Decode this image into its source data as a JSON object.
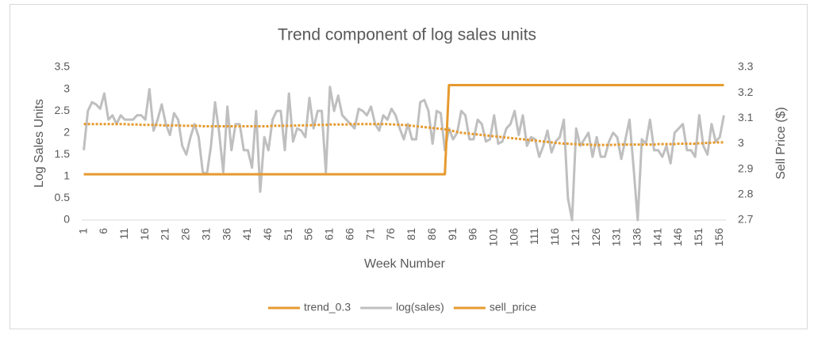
{
  "chart_data": {
    "type": "line",
    "title": "Trend component of log sales units",
    "x_label": "Week Number",
    "y_label": "Log Sales Units",
    "y2_label": "Sell Price ($)",
    "x": [
      1,
      2,
      3,
      4,
      5,
      6,
      7,
      8,
      9,
      10,
      11,
      12,
      13,
      14,
      15,
      16,
      17,
      18,
      19,
      20,
      21,
      22,
      23,
      24,
      25,
      26,
      27,
      28,
      29,
      30,
      31,
      32,
      33,
      34,
      35,
      36,
      37,
      38,
      39,
      40,
      41,
      42,
      43,
      44,
      45,
      46,
      47,
      48,
      49,
      50,
      51,
      52,
      53,
      54,
      55,
      56,
      57,
      58,
      59,
      60,
      61,
      62,
      63,
      64,
      65,
      66,
      67,
      68,
      69,
      70,
      71,
      72,
      73,
      74,
      75,
      76,
      77,
      78,
      79,
      80,
      81,
      82,
      83,
      84,
      85,
      86,
      87,
      88,
      89,
      90,
      91,
      92,
      93,
      94,
      95,
      96,
      97,
      98,
      99,
      100,
      101,
      102,
      103,
      104,
      105,
      106,
      107,
      108,
      109,
      110,
      111,
      112,
      113,
      114,
      115,
      116,
      117,
      118,
      119,
      120,
      121,
      122,
      123,
      124,
      125,
      126,
      127,
      128,
      129,
      130,
      131,
      132,
      133,
      134,
      135,
      136,
      137,
      138,
      139,
      140,
      141,
      142,
      143,
      144,
      145,
      146,
      147,
      148,
      149,
      150,
      151,
      152,
      153,
      154,
      155,
      156,
      157
    ],
    "xlim": [
      0.5,
      157.5
    ],
    "xticks": [
      1,
      6,
      11,
      16,
      21,
      26,
      31,
      36,
      41,
      46,
      51,
      56,
      61,
      66,
      71,
      76,
      81,
      86,
      91,
      96,
      101,
      106,
      111,
      116,
      121,
      126,
      131,
      136,
      141,
      146,
      151,
      156
    ],
    "ylim": [
      0,
      3.5
    ],
    "yticks": [
      0,
      0.5,
      1,
      1.5,
      2,
      2.5,
      3,
      3.5
    ],
    "y2lim": [
      2.7,
      3.3
    ],
    "y2ticks": [
      2.7,
      2.8,
      2.9,
      3,
      3.1,
      3.2,
      3.3
    ],
    "legend": "bottom",
    "series": [
      {
        "name": "trend_0.3",
        "color": "#e69a2e",
        "line_style": "dotted",
        "values": [
          2.2,
          2.2,
          2.2,
          2.2,
          2.2,
          2.2,
          2.2,
          2.2,
          2.2,
          2.2,
          2.2,
          2.19,
          2.19,
          2.19,
          2.18,
          2.18,
          2.18,
          2.18,
          2.18,
          2.17,
          2.17,
          2.17,
          2.17,
          2.17,
          2.16,
          2.16,
          2.16,
          2.16,
          2.16,
          2.15,
          2.15,
          2.15,
          2.15,
          2.15,
          2.15,
          2.15,
          2.15,
          2.15,
          2.15,
          2.15,
          2.15,
          2.15,
          2.15,
          2.15,
          2.15,
          2.15,
          2.16,
          2.16,
          2.16,
          2.16,
          2.16,
          2.16,
          2.17,
          2.17,
          2.17,
          2.17,
          2.18,
          2.18,
          2.18,
          2.18,
          2.19,
          2.19,
          2.19,
          2.19,
          2.19,
          2.2,
          2.2,
          2.2,
          2.2,
          2.2,
          2.2,
          2.2,
          2.2,
          2.2,
          2.2,
          2.19,
          2.19,
          2.18,
          2.18,
          2.17,
          2.16,
          2.15,
          2.14,
          2.13,
          2.12,
          2.11,
          2.1,
          2.09,
          2.08,
          2.06,
          2.04,
          2.02,
          2.0,
          1.99,
          1.98,
          1.97,
          1.96,
          1.95,
          1.94,
          1.93,
          1.92,
          1.91,
          1.9,
          1.89,
          1.88,
          1.87,
          1.86,
          1.85,
          1.84,
          1.83,
          1.82,
          1.81,
          1.8,
          1.79,
          1.78,
          1.77,
          1.76,
          1.75,
          1.75,
          1.74,
          1.74,
          1.73,
          1.73,
          1.73,
          1.72,
          1.72,
          1.72,
          1.72,
          1.72,
          1.72,
          1.73,
          1.73,
          1.73,
          1.73,
          1.73,
          1.73,
          1.73,
          1.73,
          1.73,
          1.73,
          1.74,
          1.74,
          1.74,
          1.74,
          1.74,
          1.75,
          1.75,
          1.75,
          1.75,
          1.75,
          1.76,
          1.76,
          1.77,
          1.77,
          1.78,
          1.78,
          1.78
        ]
      },
      {
        "name": "log(sales)",
        "color": "#bfbfbf",
        "line_style": "solid",
        "values": [
          1.6,
          2.5,
          2.7,
          2.65,
          2.55,
          2.9,
          2.3,
          2.4,
          2.2,
          2.4,
          2.3,
          2.3,
          2.3,
          2.4,
          2.4,
          2.3,
          3.0,
          2.05,
          2.3,
          2.65,
          2.2,
          1.95,
          2.45,
          2.3,
          1.7,
          1.5,
          1.9,
          2.2,
          1.9,
          1.1,
          1.05,
          1.7,
          2.7,
          2.0,
          1.1,
          2.6,
          1.6,
          2.2,
          2.2,
          1.6,
          1.6,
          1.2,
          2.5,
          0.65,
          1.9,
          1.6,
          2.3,
          2.5,
          2.5,
          1.6,
          2.9,
          1.8,
          2.1,
          2.05,
          1.9,
          2.8,
          2.1,
          2.5,
          2.5,
          1.1,
          3.05,
          2.5,
          2.85,
          2.4,
          2.3,
          2.2,
          2.1,
          2.55,
          2.5,
          2.4,
          2.6,
          2.2,
          2.05,
          2.4,
          2.3,
          2.55,
          2.4,
          2.1,
          1.85,
          2.2,
          1.85,
          1.85,
          2.7,
          2.75,
          2.5,
          1.75,
          2.5,
          2.45,
          1.6,
          2.1,
          1.85,
          2.0,
          2.5,
          2.4,
          1.85,
          1.85,
          2.3,
          2.2,
          1.8,
          1.85,
          2.4,
          1.75,
          1.8,
          2.1,
          2.2,
          2.5,
          1.95,
          2.4,
          1.7,
          1.9,
          1.85,
          1.45,
          1.7,
          2.05,
          1.55,
          1.8,
          1.9,
          2.3,
          0.5,
          0,
          2.1,
          1.7,
          1.85,
          2.0,
          1.45,
          1.9,
          1.45,
          1.45,
          1.8,
          2.0,
          1.9,
          1.4,
          1.85,
          2.3,
          1.2,
          0,
          1.85,
          1.75,
          2.3,
          1.6,
          1.6,
          1.45,
          1.7,
          1.3,
          2.0,
          2.1,
          2.2,
          1.6,
          1.6,
          1.45,
          2.4,
          1.7,
          1.5,
          2.2,
          1.8,
          1.9,
          2.4
        ]
      },
      {
        "name": "sell_price",
        "color": "#e69a2e",
        "line_style": "solid",
        "axis": "y2",
        "values": [
          2.88,
          2.88,
          2.88,
          2.88,
          2.88,
          2.88,
          2.88,
          2.88,
          2.88,
          2.88,
          2.88,
          2.88,
          2.88,
          2.88,
          2.88,
          2.88,
          2.88,
          2.88,
          2.88,
          2.88,
          2.88,
          2.88,
          2.88,
          2.88,
          2.88,
          2.88,
          2.88,
          2.88,
          2.88,
          2.88,
          2.88,
          2.88,
          2.88,
          2.88,
          2.88,
          2.88,
          2.88,
          2.88,
          2.88,
          2.88,
          2.88,
          2.88,
          2.88,
          2.88,
          2.88,
          2.88,
          2.88,
          2.88,
          2.88,
          2.88,
          2.88,
          2.88,
          2.88,
          2.88,
          2.88,
          2.88,
          2.88,
          2.88,
          2.88,
          2.88,
          2.88,
          2.88,
          2.88,
          2.88,
          2.88,
          2.88,
          2.88,
          2.88,
          2.88,
          2.88,
          2.88,
          2.88,
          2.88,
          2.88,
          2.88,
          2.88,
          2.88,
          2.88,
          2.88,
          2.88,
          2.88,
          2.88,
          2.88,
          2.88,
          2.88,
          2.88,
          2.88,
          2.88,
          2.88,
          3.23,
          3.23,
          3.23,
          3.23,
          3.23,
          3.23,
          3.23,
          3.23,
          3.23,
          3.23,
          3.23,
          3.23,
          3.23,
          3.23,
          3.23,
          3.23,
          3.23,
          3.23,
          3.23,
          3.23,
          3.23,
          3.23,
          3.23,
          3.23,
          3.23,
          3.23,
          3.23,
          3.23,
          3.23,
          3.23,
          3.23,
          3.23,
          3.23,
          3.23,
          3.23,
          3.23,
          3.23,
          3.23,
          3.23,
          3.23,
          3.23,
          3.23,
          3.23,
          3.23,
          3.23,
          3.23,
          3.23,
          3.23,
          3.23,
          3.23,
          3.23,
          3.23,
          3.23,
          3.23,
          3.23,
          3.23,
          3.23,
          3.23,
          3.23,
          3.23,
          3.23,
          3.23,
          3.23,
          3.23,
          3.23,
          3.23,
          3.23,
          3.23
        ]
      }
    ]
  }
}
